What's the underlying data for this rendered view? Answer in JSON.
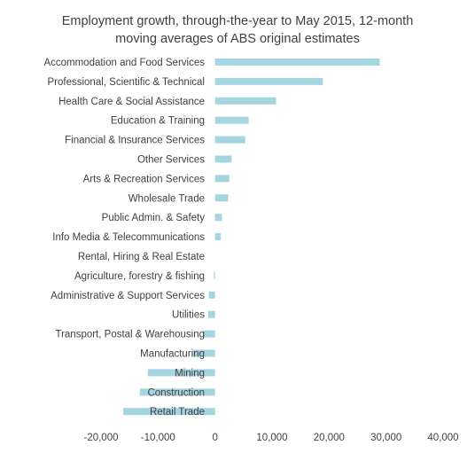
{
  "chart_data": {
    "type": "bar",
    "orientation": "horizontal",
    "title_lines": [
      "Employment growth, through-the-year to May 2015, 12-month",
      "moving averages of ABS original estimates"
    ],
    "categories": [
      "Accommodation and Food Services",
      "Professional, Scientific & Technical",
      "Health Care & Social Assistance",
      "Education & Training",
      "Financial & Insurance Services",
      "Other Services",
      "Arts & Recreation Services",
      "Wholesale Trade",
      "Public Admin. & Safety",
      "Info Media & Telecommunications",
      "Rental, Hiring & Real Estate",
      "Agriculture, forestry & fishing",
      "Administrative & Support Services",
      "Utilities",
      "Transport, Postal & Warehousing",
      "Manufacturing",
      "Mining",
      "Construction",
      "Retail Trade"
    ],
    "values": [
      28900,
      18900,
      10700,
      5900,
      5300,
      2900,
      2500,
      2300,
      1200,
      1000,
      0,
      -200,
      -1100,
      -1200,
      -2100,
      -3900,
      -11800,
      -13200,
      -16100
    ],
    "xlim": [
      -20000,
      40000
    ],
    "xticks": [
      -20000,
      -10000,
      0,
      10000,
      20000,
      30000,
      40000
    ],
    "xtick_labels": [
      "-20,000",
      "-10,000",
      "0",
      "10,000",
      "20,000",
      "30,000",
      "40,000"
    ],
    "grid": false,
    "legend": "none",
    "bar_color": "#A5D5E1"
  }
}
